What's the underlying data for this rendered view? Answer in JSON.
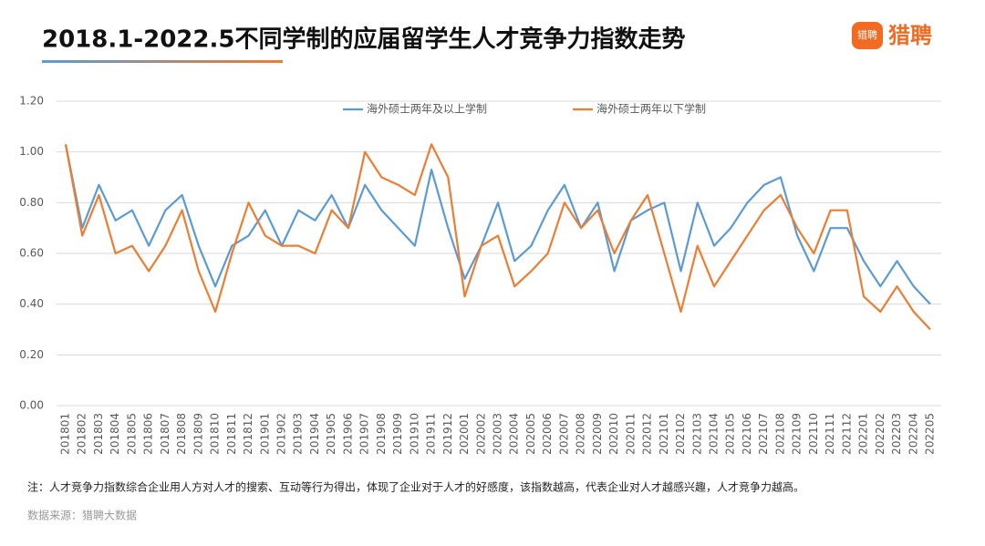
{
  "logo": {
    "icon_text": "猎聘",
    "name": "猎聘"
  },
  "chart_data": {
    "type": "line",
    "title": "2018.1-2022.5不同学制的应届留学生人才竞争力指数走势",
    "note": "注：人才竞争力指数综合企业用人方对人才的搜索、互动等行为得出，体现了企业对于人才的好感度，该指数越高，代表企业对人才越感兴趣，人才竞争力越高。",
    "source": "数据来源：猎聘大数据",
    "categories": [
      "201801",
      "201802",
      "201803",
      "201804",
      "201805",
      "201806",
      "201807",
      "201808",
      "201809",
      "201810",
      "201811",
      "201812",
      "201901",
      "201902",
      "201903",
      "201904",
      "201905",
      "201906",
      "201907",
      "201908",
      "201909",
      "201910",
      "201911",
      "201912",
      "202001",
      "202002",
      "202003",
      "202004",
      "202005",
      "202006",
      "202007",
      "202008",
      "202009",
      "202010",
      "202011",
      "202012",
      "202101",
      "202102",
      "202103",
      "202104",
      "202105",
      "202106",
      "202107",
      "202108",
      "202109",
      "202110",
      "202111",
      "202112",
      "202201",
      "202202",
      "202203",
      "202204",
      "202205"
    ],
    "series": [
      {
        "name": "海外硕士两年及以上学制",
        "color": "#5b9bd5",
        "values": [
          1.03,
          0.7,
          0.87,
          0.73,
          0.77,
          0.63,
          0.77,
          0.83,
          0.63,
          0.47,
          0.63,
          0.67,
          0.77,
          0.63,
          0.77,
          0.73,
          0.83,
          0.7,
          0.87,
          0.77,
          0.7,
          0.63,
          0.93,
          0.7,
          0.5,
          0.63,
          0.8,
          0.57,
          0.63,
          0.77,
          0.87,
          0.7,
          0.8,
          0.53,
          0.73,
          0.77,
          0.8,
          0.53,
          0.8,
          0.63,
          0.7,
          0.8,
          0.87,
          0.9,
          0.67,
          0.53,
          0.7,
          0.7,
          0.57,
          0.47,
          0.57,
          0.47,
          0.4
        ]
      },
      {
        "name": "海外硕士两年以下学制",
        "color": "#ed7d31",
        "values": [
          1.03,
          0.67,
          0.83,
          0.6,
          0.63,
          0.53,
          0.63,
          0.77,
          0.53,
          0.37,
          0.6,
          0.8,
          0.67,
          0.63,
          0.63,
          0.6,
          0.77,
          0.7,
          1.0,
          0.9,
          0.87,
          0.83,
          1.03,
          0.9,
          0.43,
          0.63,
          0.67,
          0.47,
          0.53,
          0.6,
          0.8,
          0.7,
          0.77,
          0.6,
          0.73,
          0.83,
          0.6,
          0.37,
          0.63,
          0.47,
          0.57,
          0.67,
          0.77,
          0.83,
          0.7,
          0.6,
          0.77,
          0.77,
          0.43,
          0.37,
          0.47,
          0.37,
          0.3
        ]
      }
    ],
    "ylim": [
      0,
      1.2
    ],
    "yticks": [
      {
        "value": 0,
        "label": "0.00"
      },
      {
        "value": 0.2,
        "label": "0.20"
      },
      {
        "value": 0.4,
        "label": "0.40"
      },
      {
        "value": 0.6,
        "label": "0.60"
      },
      {
        "value": 0.8,
        "label": "0.80"
      },
      {
        "value": 1.0,
        "label": "1.00"
      },
      {
        "value": 1.2,
        "label": "1.20"
      }
    ],
    "grid": true,
    "legend": "top"
  }
}
